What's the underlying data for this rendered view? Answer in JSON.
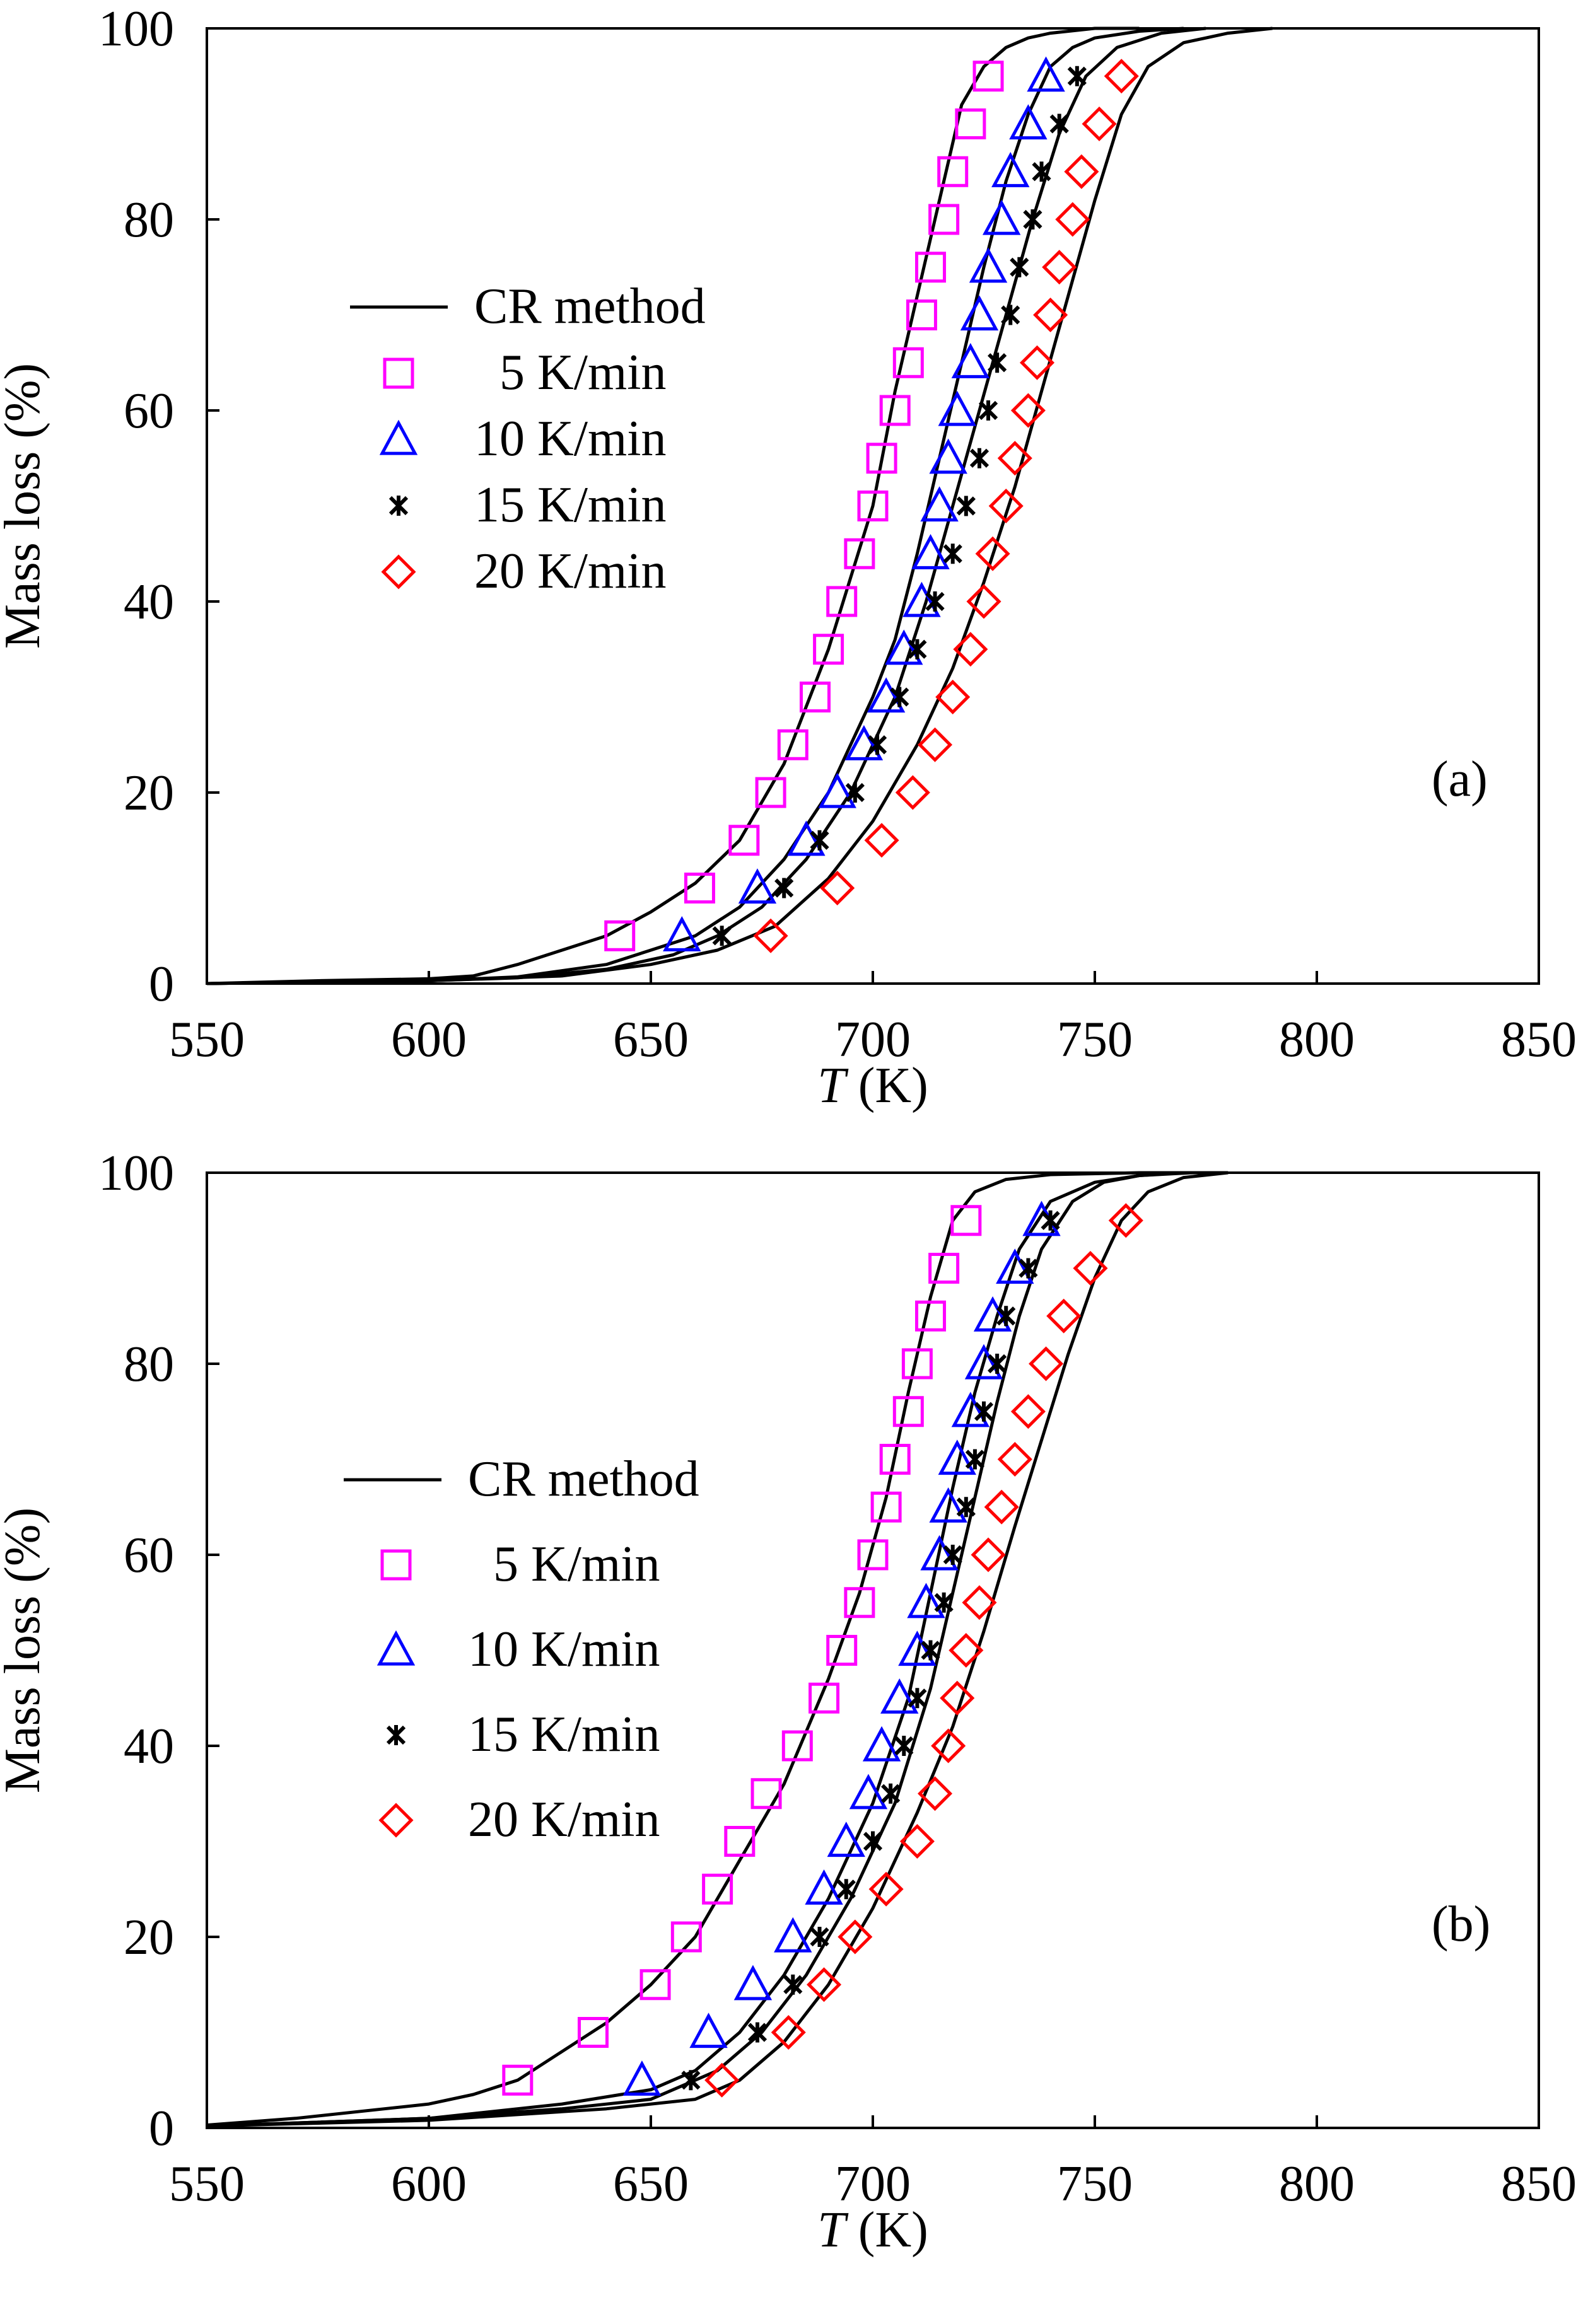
{
  "colors": {
    "series_5": "#ff00ff",
    "series_10": "#0000ff",
    "series_15": "#000000",
    "series_20": "#ff0000",
    "model_line": "#000000"
  },
  "chart_data": [
    {
      "type": "line",
      "panel_label": "(a)",
      "xlabel_italic": "T",
      "xlabel_unit": " (K)",
      "ylabel": "Mass loss (%)",
      "xlim": [
        550,
        850
      ],
      "ylim": [
        0,
        100
      ],
      "xticks": [
        "550",
        "600",
        "650",
        "700",
        "750",
        "800",
        "850"
      ],
      "yticks": [
        "0",
        "20",
        "40",
        "60",
        "80",
        "100"
      ],
      "legend": {
        "position": "center-left",
        "line_label": "CR method",
        "entries": [
          "  5 K/min",
          "10 K/min",
          "15 K/min",
          "20 K/min"
        ]
      },
      "lines": [
        {
          "name": "CR method 5 K/min",
          "x": [
            550,
            575,
            600,
            610,
            620,
            630,
            640,
            650,
            660,
            670,
            680,
            690,
            700,
            705,
            710,
            715,
            720,
            725,
            730,
            735,
            740,
            750,
            760
          ],
          "y": [
            0,
            0.3,
            0.5,
            0.8,
            2,
            3.5,
            5,
            7.5,
            10.5,
            15,
            23,
            35,
            50,
            62,
            72,
            82,
            92,
            96,
            98,
            99,
            99.5,
            100,
            100
          ]
        },
        {
          "name": "CR method 10 K/min",
          "x": [
            550,
            600,
            620,
            640,
            650,
            660,
            670,
            680,
            690,
            700,
            705,
            710,
            715,
            720,
            725,
            730,
            735,
            740,
            745,
            750,
            760,
            770
          ],
          "y": [
            0,
            0.3,
            0.7,
            2,
            3.5,
            5,
            8,
            13,
            20,
            30,
            36,
            45,
            55,
            65,
            75,
            84,
            91,
            96,
            98,
            99,
            99.7,
            100
          ]
        },
        {
          "name": "CR method 15 K/min",
          "x": [
            550,
            600,
            620,
            640,
            655,
            665,
            675,
            685,
            695,
            705,
            712,
            718,
            724,
            730,
            736,
            742,
            748,
            755,
            765,
            775
          ],
          "y": [
            0,
            0.3,
            0.6,
            1.5,
            3,
            5,
            8,
            13,
            20,
            30,
            40,
            50,
            60,
            70,
            80,
            89,
            95,
            98,
            99.5,
            100
          ]
        },
        {
          "name": "CR method 20 K/min",
          "x": [
            550,
            600,
            630,
            650,
            665,
            678,
            690,
            700,
            710,
            718,
            725,
            732,
            738,
            744,
            750,
            756,
            762,
            770,
            780,
            790
          ],
          "y": [
            0,
            0.3,
            0.8,
            2,
            3.5,
            6,
            11,
            17,
            25,
            33,
            42,
            52,
            62,
            72,
            82,
            91,
            96,
            98.5,
            99.5,
            100
          ]
        }
      ],
      "series": [
        {
          "name": "5 K/min",
          "marker": "square",
          "x": [
            643,
            661,
            671,
            677,
            682,
            687,
            690,
            693,
            697,
            700,
            702,
            705,
            708,
            711,
            713,
            716,
            718,
            722,
            726
          ],
          "y": [
            5,
            10,
            15,
            20,
            25,
            30,
            35,
            40,
            45,
            50,
            55,
            60,
            65,
            70,
            75,
            80,
            85,
            90,
            95
          ]
        },
        {
          "name": "10 K/min",
          "marker": "triangle",
          "x": [
            657,
            674,
            685,
            692,
            698,
            703,
            707,
            711,
            713,
            715,
            717,
            719,
            722,
            724,
            726,
            729,
            731,
            735,
            739
          ],
          "y": [
            5,
            10,
            15,
            20,
            25,
            30,
            35,
            40,
            45,
            50,
            55,
            60,
            65,
            70,
            75,
            80,
            85,
            90,
            95
          ]
        },
        {
          "name": "15 K/min",
          "marker": "asterisk",
          "x": [
            666,
            680,
            688,
            696,
            701,
            706,
            710,
            714,
            718,
            721,
            724,
            726,
            728,
            731,
            733,
            736,
            738,
            742,
            746
          ],
          "y": [
            5,
            10,
            15,
            20,
            25,
            30,
            35,
            40,
            45,
            50,
            55,
            60,
            65,
            70,
            75,
            80,
            85,
            90,
            95
          ]
        },
        {
          "name": "20 K/min",
          "marker": "diamond",
          "x": [
            677,
            692,
            702,
            709,
            714,
            718,
            722,
            725,
            727,
            730,
            732,
            735,
            737,
            740,
            742,
            745,
            747,
            751,
            756
          ],
          "y": [
            5,
            10,
            15,
            20,
            25,
            30,
            35,
            40,
            45,
            50,
            55,
            60,
            65,
            70,
            75,
            80,
            85,
            90,
            95
          ]
        }
      ]
    },
    {
      "type": "line",
      "panel_label": "(b)",
      "xlabel_italic": "T",
      "xlabel_unit": " (K)",
      "ylabel": "Mass loss (%)",
      "xlim": [
        550,
        850
      ],
      "ylim": [
        0,
        100
      ],
      "xticks": [
        "550",
        "600",
        "650",
        "700",
        "750",
        "800",
        "850"
      ],
      "yticks": [
        "0",
        "20",
        "40",
        "60",
        "80",
        "100"
      ],
      "legend": {
        "position": "center-left",
        "line_label": "CR method",
        "entries": [
          "  5 K/min",
          "10 K/min",
          "15 K/min",
          "20 K/min"
        ]
      },
      "lines": [
        {
          "name": "CR method 5 K/min",
          "x": [
            550,
            570,
            590,
            600,
            610,
            620,
            630,
            640,
            650,
            660,
            670,
            680,
            690,
            697,
            703,
            708,
            713,
            718,
            723,
            730,
            740,
            760,
            780
          ],
          "y": [
            0.3,
            1,
            2,
            2.5,
            3.5,
            5,
            8,
            11,
            15,
            20,
            28,
            36,
            47,
            56,
            66,
            77,
            87,
            95,
            98,
            99.3,
            99.8,
            100,
            100
          ]
        },
        {
          "name": "CR method 10 K/min",
          "x": [
            550,
            600,
            630,
            650,
            660,
            670,
            680,
            690,
            700,
            708,
            713,
            718,
            723,
            728,
            733,
            740,
            750,
            760,
            770
          ],
          "y": [
            0.2,
            1,
            2.5,
            4,
            6,
            10,
            16,
            24,
            34,
            45,
            56,
            67,
            77,
            85,
            92,
            97,
            99,
            99.7,
            100
          ]
        },
        {
          "name": "CR method 15 K/min",
          "x": [
            550,
            600,
            630,
            650,
            665,
            675,
            685,
            695,
            705,
            713,
            718,
            723,
            728,
            733,
            738,
            745,
            752,
            760,
            772
          ],
          "y": [
            0.2,
            1,
            2,
            3,
            6,
            10,
            16,
            24,
            34,
            46,
            56,
            66,
            76,
            85,
            92,
            97,
            99,
            99.7,
            100
          ]
        },
        {
          "name": "CR method 20 K/min",
          "x": [
            550,
            600,
            640,
            660,
            670,
            680,
            690,
            700,
            710,
            718,
            725,
            732,
            738,
            744,
            750,
            756,
            762,
            770,
            780
          ],
          "y": [
            0.2,
            0.8,
            2,
            3,
            5,
            9,
            15,
            23,
            33,
            42,
            52,
            63,
            72,
            81,
            89,
            95,
            98,
            99.5,
            100
          ]
        }
      ],
      "series": [
        {
          "name": "5 K/min",
          "marker": "square",
          "x": [
            620,
            637,
            651,
            658,
            665,
            670,
            676,
            683,
            689,
            693,
            697,
            700,
            703,
            705,
            708,
            710,
            713,
            716,
            721
          ],
          "y": [
            5,
            10,
            15,
            20,
            25,
            30,
            35,
            40,
            45,
            50,
            55,
            60,
            65,
            70,
            75,
            80,
            85,
            90,
            95
          ]
        },
        {
          "name": "10 K/min",
          "marker": "triangle",
          "x": [
            648,
            663,
            673,
            682,
            689,
            694,
            699,
            702,
            706,
            710,
            712,
            715,
            717,
            719,
            722,
            725,
            727,
            732,
            738
          ],
          "y": [
            5,
            10,
            15,
            20,
            25,
            30,
            35,
            40,
            45,
            50,
            55,
            60,
            65,
            70,
            75,
            80,
            85,
            90,
            95
          ]
        },
        {
          "name": "15 K/min",
          "marker": "asterisk",
          "x": [
            659,
            674,
            682,
            688,
            694,
            700,
            704,
            707,
            710,
            713,
            716,
            718,
            721,
            723,
            725,
            728,
            730,
            735,
            740
          ],
          "y": [
            5,
            10,
            15,
            20,
            25,
            30,
            35,
            40,
            45,
            50,
            55,
            60,
            65,
            70,
            75,
            80,
            85,
            90,
            95
          ]
        },
        {
          "name": "20 K/min",
          "marker": "diamond",
          "x": [
            666,
            681,
            689,
            696,
            703,
            710,
            714,
            717,
            719,
            721,
            724,
            726,
            729,
            732,
            735,
            739,
            743,
            749,
            757
          ],
          "y": [
            5,
            10,
            15,
            20,
            25,
            30,
            35,
            40,
            45,
            50,
            55,
            60,
            65,
            70,
            75,
            80,
            85,
            90,
            95
          ]
        }
      ]
    }
  ]
}
